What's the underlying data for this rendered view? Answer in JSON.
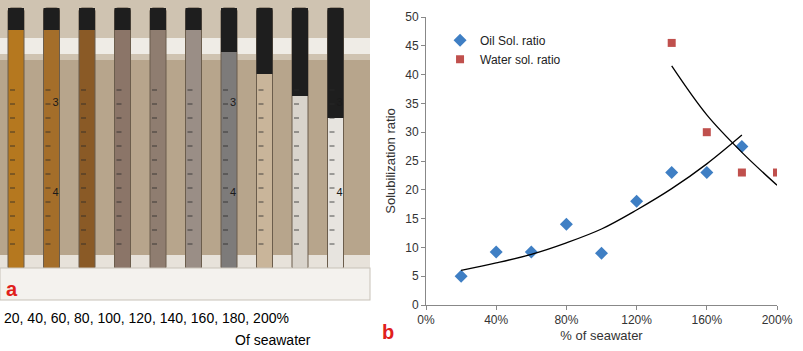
{
  "panel_a": {
    "label": "a",
    "label_color": "#e0201b",
    "caption": [
      "20, 40, 60, 80, 100, 120, 140, 160, 180, 200%",
      "Of seawater"
    ],
    "tube_marks": [
      "3",
      "4"
    ]
  },
  "chart_data": {
    "type": "scatter",
    "x_label": "% of seawater",
    "y_label": "Solubilization ratio",
    "annotations": [
      {
        "text": "b",
        "color": "#e0201b"
      }
    ],
    "series": [
      {
        "name": "Oil Sol. ratio",
        "type": "scatter",
        "color": "#3f7fc4",
        "marker": "diamond",
        "x": [
          20,
          40,
          60,
          80,
          100,
          120,
          140,
          160,
          180
        ],
        "values": [
          5,
          9.2,
          9.2,
          14,
          9,
          18,
          23,
          23,
          27.5
        ]
      },
      {
        "name": "Water sol. ratio",
        "type": "scatter",
        "color": "#c0504d",
        "marker": "square",
        "x": [
          140,
          160,
          180,
          200
        ],
        "values": [
          45.5,
          30,
          23,
          23
        ]
      },
      {
        "type": "line",
        "color": "#000000",
        "line_style": "solid",
        "x": [
          20,
          40,
          60,
          80,
          100,
          120,
          140,
          160,
          180
        ],
        "values": [
          6,
          7.3,
          8.8,
          10.8,
          13.2,
          16.5,
          20.2,
          24.5,
          29.5
        ]
      },
      {
        "type": "line",
        "color": "#000000",
        "line_style": "solid",
        "x": [
          140,
          160,
          180,
          200
        ],
        "values": [
          41.5,
          33,
          26.5,
          20.8
        ]
      }
    ],
    "xlim": [
      0,
      200
    ],
    "xticks": [
      {
        "value": 0,
        "label": "0%"
      },
      {
        "value": 40,
        "label": "40%"
      },
      {
        "value": 80,
        "label": "80%"
      },
      {
        "value": 120,
        "label": "120%"
      },
      {
        "value": 160,
        "label": "160%"
      },
      {
        "value": 200,
        "label": "200%"
      }
    ],
    "ylim": [
      0,
      50
    ],
    "yticks": [
      0,
      5,
      10,
      15,
      20,
      25,
      30,
      35,
      40,
      45,
      50
    ],
    "grid": false,
    "legend": "upper left"
  }
}
